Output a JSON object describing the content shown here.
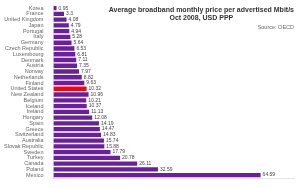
{
  "chart_data": {
    "type": "bar",
    "orientation": "horizontal",
    "title": "Average broadband monthly price per advertised Mbit/s\nOct 2008, USD PPP",
    "annotation": "Source: OECD",
    "categories": [
      "Korea",
      "France",
      "United Kingdom",
      "Japan",
      "Portugal",
      "Italy",
      "Germany",
      "Czech Republic",
      "Luxembourg",
      "Denmark",
      "Austria",
      "Norway",
      "Netherlands",
      "Finland",
      "United States",
      "New Zealand",
      "Belgium",
      "Iceland",
      "Ireland",
      "Hungary",
      "Spain",
      "Greece",
      "Switzerland",
      "Australia",
      "Slovak Republic",
      "Sweden",
      "Turkey",
      "Canada",
      "Poland",
      "Mexico"
    ],
    "values": [
      0.95,
      3.3,
      4.08,
      4.79,
      4.94,
      5.28,
      5.64,
      6.53,
      6.81,
      7.11,
      7.35,
      7.97,
      8.82,
      9.63,
      10.32,
      10.96,
      10.21,
      10.37,
      11.13,
      12.08,
      14.19,
      14.47,
      14.83,
      15.74,
      15.88,
      17.79,
      20.78,
      26.11,
      32.59,
      64.59
    ],
    "colors": [
      "#6b1fa0",
      "#6b1fa0",
      "#6b1fa0",
      "#6b1fa0",
      "#6b1fa0",
      "#6b1fa0",
      "#6b1fa0",
      "#6b1fa0",
      "#6b1fa0",
      "#6b1fa0",
      "#6b1fa0",
      "#6b1fa0",
      "#6b1fa0",
      "#6b1fa0",
      "#ff0000",
      "#6b1fa0",
      "#6b1fa0",
      "#6b1fa0",
      "#6b1fa0",
      "#6b1fa0",
      "#6b1fa0",
      "#6b1fa0",
      "#6b1fa0",
      "#6b1fa0",
      "#6b1fa0",
      "#6b1fa0",
      "#6b1fa0",
      "#6b1fa0",
      "#6b1fa0",
      "#6b1fa0"
    ],
    "xlim": [
      0,
      75
    ],
    "grid": false,
    "data_labels": true,
    "tick_labels": "y"
  }
}
